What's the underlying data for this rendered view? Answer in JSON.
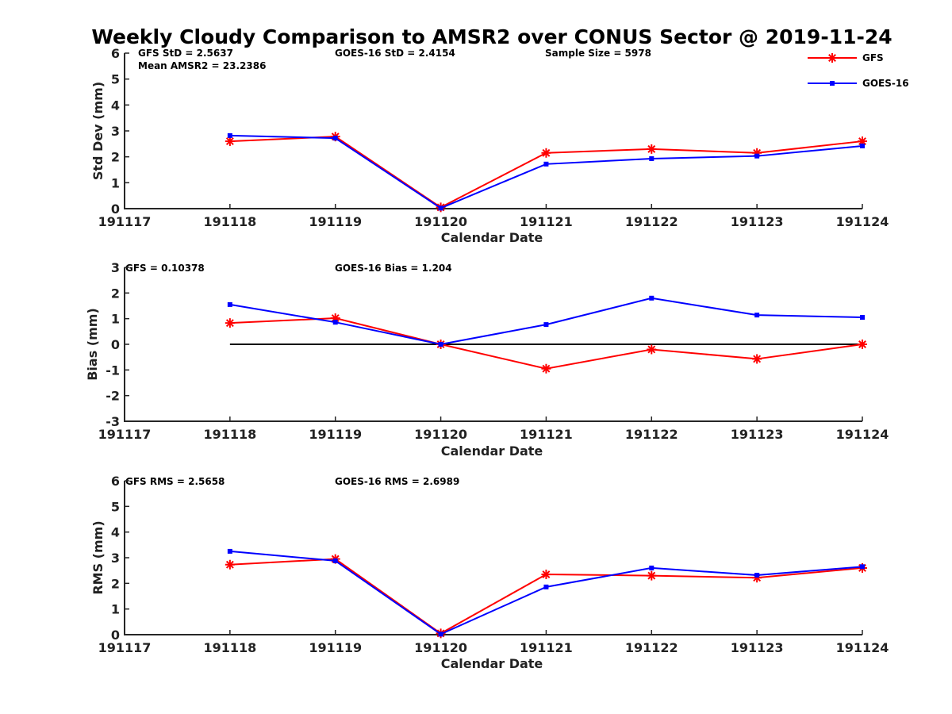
{
  "title": "Weekly Cloudy Comparison to AMSR2 over CONUS Sector @ 2019-11-24",
  "colors": {
    "gfs": "#ff0000",
    "goes": "#0000ff",
    "reference": "#000000",
    "axis": "#262626"
  },
  "legend": [
    {
      "name": "GFS",
      "marker": "star-icon"
    },
    {
      "name": "GOES-16",
      "marker": "square-icon"
    }
  ],
  "chart_data": [
    {
      "type": "line",
      "ylabel": "Std Dev (mm)",
      "xlabel": "Calendar Date",
      "ylim": [
        0,
        6
      ],
      "yticks": [
        "0",
        "1",
        "2",
        "3",
        "4",
        "5",
        "6"
      ],
      "categories": [
        "191117",
        "191118",
        "191119",
        "191120",
        "191121",
        "191122",
        "191123",
        "191124"
      ],
      "annotations": {
        "gfs_stat": "GFS StD = 2.5637",
        "goes_stat": "GOES-16 StD = 2.4154",
        "sample": "Sample Size = 5978",
        "mean": "Mean AMSR2 = 23.2386"
      },
      "series": [
        {
          "name": "GFS",
          "x": [
            "191118",
            "191119",
            "191120",
            "191121",
            "191122",
            "191123",
            "191124"
          ],
          "values": [
            2.6,
            2.78,
            0.05,
            2.15,
            2.3,
            2.15,
            2.6
          ]
        },
        {
          "name": "GOES-16",
          "x": [
            "191118",
            "191119",
            "191120",
            "191121",
            "191122",
            "191123",
            "191124"
          ],
          "values": [
            2.82,
            2.72,
            0.02,
            1.72,
            1.93,
            2.03,
            2.42
          ]
        }
      ]
    },
    {
      "type": "line",
      "ylabel": "Bias (mm)",
      "xlabel": "Calendar Date",
      "ylim": [
        -3,
        3
      ],
      "yticks": [
        "-3",
        "-2",
        "-1",
        "0",
        "1",
        "2",
        "3"
      ],
      "categories": [
        "191117",
        "191118",
        "191119",
        "191120",
        "191121",
        "191122",
        "191123",
        "191124"
      ],
      "annotations": {
        "gfs_stat": "GFS = 0.10378",
        "goes_stat": "GOES-16 Bias  = 1.204"
      },
      "zero_line": {
        "from": "191118",
        "to": "191124",
        "value": 0
      },
      "series": [
        {
          "name": "GFS",
          "x": [
            "191118",
            "191119",
            "191120",
            "191121",
            "191122",
            "191123",
            "191124"
          ],
          "values": [
            0.83,
            1.02,
            0.0,
            -0.95,
            -0.2,
            -0.57,
            0.0
          ]
        },
        {
          "name": "GOES-16",
          "x": [
            "191118",
            "191119",
            "191120",
            "191121",
            "191122",
            "191123",
            "191124"
          ],
          "values": [
            1.55,
            0.86,
            0.0,
            0.77,
            1.8,
            1.14,
            1.05
          ]
        }
      ]
    },
    {
      "type": "line",
      "ylabel": "RMS (mm)",
      "xlabel": "Calendar Date",
      "ylim": [
        0,
        6
      ],
      "yticks": [
        "0",
        "1",
        "2",
        "3",
        "4",
        "5",
        "6"
      ],
      "categories": [
        "191117",
        "191118",
        "191119",
        "191120",
        "191121",
        "191122",
        "191123",
        "191124"
      ],
      "annotations": {
        "gfs_stat": "GFS RMS = 2.5658",
        "goes_stat": "GOES-16 RMS = 2.6989"
      },
      "series": [
        {
          "name": "GFS",
          "x": [
            "191118",
            "191119",
            "191120",
            "191121",
            "191122",
            "191123",
            "191124"
          ],
          "values": [
            2.73,
            2.95,
            0.05,
            2.35,
            2.3,
            2.22,
            2.6
          ]
        },
        {
          "name": "GOES-16",
          "x": [
            "191118",
            "191119",
            "191120",
            "191121",
            "191122",
            "191123",
            "191124"
          ],
          "values": [
            3.25,
            2.88,
            0.02,
            1.86,
            2.6,
            2.32,
            2.65
          ]
        }
      ]
    }
  ]
}
